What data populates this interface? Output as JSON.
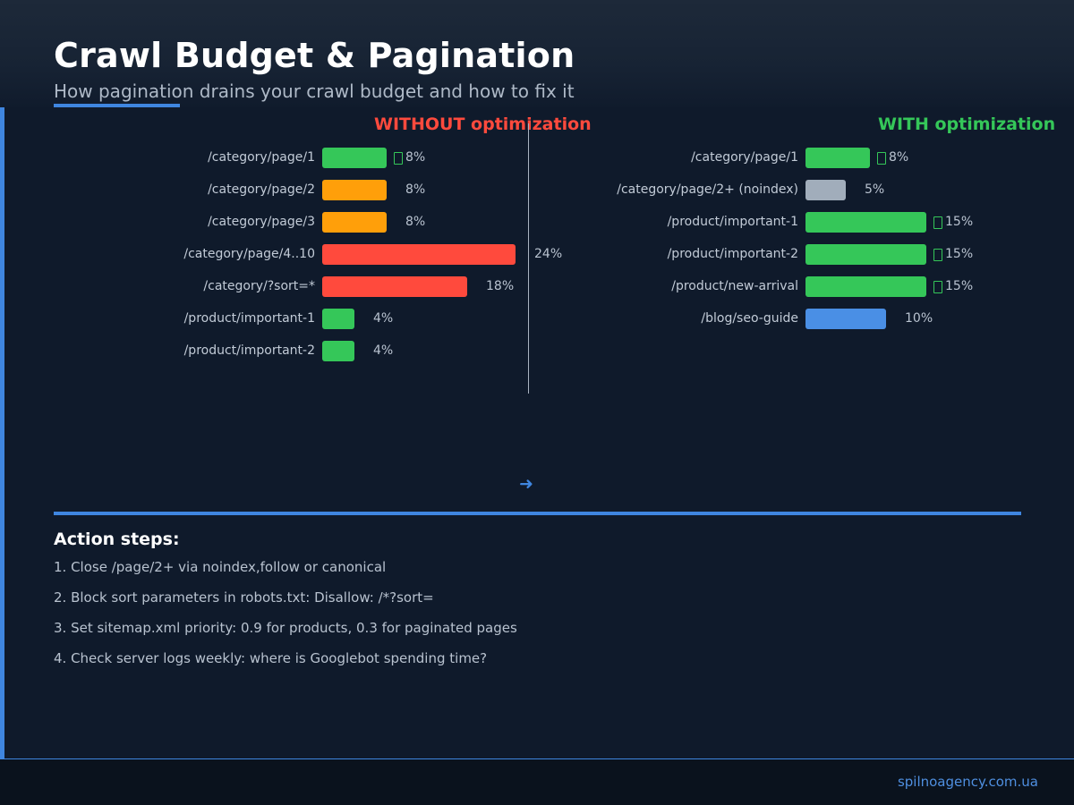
{
  "header": {
    "title": "Crawl Budget & Pagination",
    "subtitle": "How pagination drains your crawl budget and how to fix it"
  },
  "colors": {
    "background": "#0f1a2b",
    "accent": "#3f86e0",
    "red": "#ff4a3d",
    "orange": "#ff9f0a",
    "green": "#35c759",
    "gray": "#a1adbb",
    "blue": "#4a8fe5"
  },
  "chart_data": [
    {
      "type": "bar",
      "orientation": "horizontal",
      "title": "WITHOUT optimization",
      "categories": [
        "/category/page/1",
        "/category/page/2",
        "/category/page/3",
        "/category/page/4..10",
        "/category/?sort=*",
        "/product/important-1",
        "/product/important-2"
      ],
      "values": [
        8,
        8,
        8,
        24,
        18,
        4,
        4
      ],
      "value_labels": [
        "8%",
        "8%",
        "8%",
        "24%",
        "18%",
        "4%",
        "4%"
      ],
      "bar_colors": [
        "#35c759",
        "#ff9f0a",
        "#ff9f0a",
        "#ff4a3d",
        "#ff4a3d",
        "#35c759",
        "#35c759"
      ],
      "checkmarks": [
        true,
        false,
        false,
        false,
        false,
        false,
        false
      ],
      "unit": "%"
    },
    {
      "type": "bar",
      "orientation": "horizontal",
      "title": "WITH optimization",
      "categories": [
        "/category/page/1",
        "/category/page/2+ (noindex)",
        "/product/important-1",
        "/product/important-2",
        "/product/new-arrival",
        "/blog/seo-guide"
      ],
      "values": [
        8,
        5,
        15,
        15,
        15,
        10
      ],
      "value_labels": [
        "8%",
        "5%",
        "15%",
        "15%",
        "15%",
        "10%"
      ],
      "bar_colors": [
        "#35c759",
        "#a1adbb",
        "#35c759",
        "#35c759",
        "#35c759",
        "#4a8fe5"
      ],
      "checkmarks": [
        true,
        false,
        true,
        true,
        true,
        false
      ],
      "unit": "%"
    }
  ],
  "arrow_icon": "arrow-right-icon",
  "actions": {
    "heading": "Action steps:",
    "steps": [
      "1. Close /page/2+ via noindex,follow or canonical",
      "2. Block sort parameters in robots.txt: Disallow: /*?sort=",
      "3. Set sitemap.xml priority: 0.9 for products, 0.3 for paginated pages",
      "4. Check server logs weekly: where is Googlebot spending time?"
    ]
  },
  "footer": {
    "site": "spilnoagency.com.ua"
  }
}
